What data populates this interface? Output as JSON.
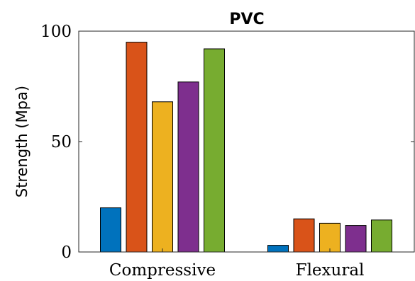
{
  "chart_data": {
    "type": "bar",
    "title": "PVC",
    "xlabel": "",
    "ylabel": "Strength (Mpa)",
    "ylim": [
      0,
      100
    ],
    "yticks": [
      0,
      50,
      100
    ],
    "categories": [
      "Compressive",
      "Flexural"
    ],
    "series": [
      {
        "color": "#0072BD",
        "values": [
          20,
          3
        ]
      },
      {
        "color": "#D95319",
        "values": [
          95,
          15
        ]
      },
      {
        "color": "#EDB120",
        "values": [
          68,
          13
        ]
      },
      {
        "color": "#7E2F8E",
        "values": [
          77,
          12
        ]
      },
      {
        "color": "#77AC30",
        "values": [
          92,
          14.5
        ]
      }
    ],
    "grid": false,
    "legend": "none"
  }
}
